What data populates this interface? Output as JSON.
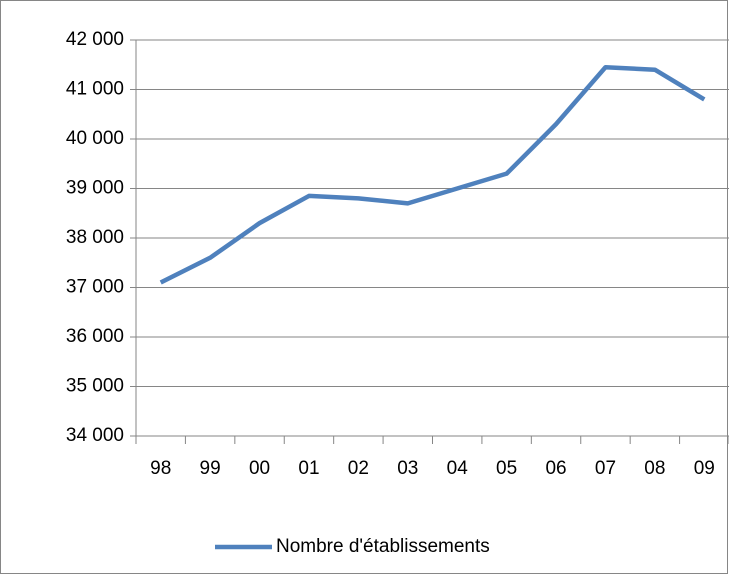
{
  "chart_data": {
    "type": "line",
    "categories": [
      "98",
      "99",
      "00",
      "01",
      "02",
      "03",
      "04",
      "05",
      "06",
      "07",
      "08",
      "09"
    ],
    "series": [
      {
        "name": "Nombre d'établissements",
        "color": "#4f81bd",
        "values": [
          37100,
          37600,
          38300,
          38850,
          38800,
          38700,
          39000,
          39300,
          40300,
          41450,
          41400,
          40800
        ]
      }
    ],
    "ylim": [
      34000,
      42000
    ],
    "yticks": [
      {
        "value": 34000,
        "label": "34 000"
      },
      {
        "value": 35000,
        "label": "35 000"
      },
      {
        "value": 36000,
        "label": "36 000"
      },
      {
        "value": 37000,
        "label": "37 000"
      },
      {
        "value": 38000,
        "label": "38 000"
      },
      {
        "value": 39000,
        "label": "39 000"
      },
      {
        "value": 40000,
        "label": "40 000"
      },
      {
        "value": 41000,
        "label": "41 000"
      },
      {
        "value": 42000,
        "label": "42 000"
      }
    ],
    "grid": true,
    "legend": "bottom"
  }
}
